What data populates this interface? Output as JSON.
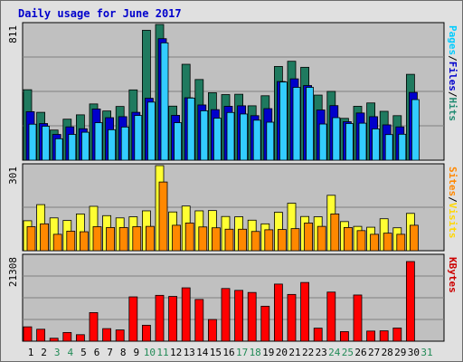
{
  "chart_data": [
    {
      "type": "bar",
      "title": "Daily usage for June 2017",
      "ymax_label": "811",
      "ylabel_parts": [
        {
          "text": "Pages",
          "color": "#00ccff"
        },
        {
          "text": "/",
          "color": "#000000"
        },
        {
          "text": "Files",
          "color": "#0000cc"
        },
        {
          "text": "/",
          "color": "#000000"
        },
        {
          "text": "Hits",
          "color": "#228b73"
        }
      ],
      "ylim": [
        0,
        811
      ],
      "categories": [
        "1",
        "2",
        "3",
        "4",
        "5",
        "6",
        "7",
        "8",
        "9",
        "10",
        "11",
        "12",
        "13",
        "14",
        "15",
        "16",
        "17",
        "18",
        "19",
        "20",
        "21",
        "22",
        "23",
        "24",
        "25",
        "26",
        "27",
        "28",
        "29",
        "30",
        "31"
      ],
      "weekend_days": [
        "3",
        "4",
        "10",
        "11",
        "17",
        "18",
        "24",
        "25",
        "31"
      ],
      "series": [
        {
          "name": "Hits",
          "color": "#1f7a5f",
          "values": [
            421,
            286,
            180,
            245,
            271,
            336,
            294,
            321,
            420,
            776,
            811,
            323,
            573,
            482,
            403,
            392,
            394,
            325,
            385,
            560,
            591,
            555,
            389,
            411,
            250,
            322,
            342,
            292,
            266,
            513,
            0
          ]
        },
        {
          "name": "Files",
          "color": "#0000cc",
          "values": [
            290,
            219,
            154,
            199,
            188,
            306,
            254,
            260,
            286,
            370,
            726,
            268,
            373,
            330,
            302,
            322,
            325,
            266,
            308,
            470,
            486,
            446,
            300,
            326,
            230,
            282,
            260,
            211,
            199,
            405,
            0
          ]
        },
        {
          "name": "Pages",
          "color": "#33ccff",
          "values": [
            215,
            203,
            128,
            154,
            167,
            224,
            182,
            198,
            267,
            347,
            701,
            224,
            371,
            295,
            251,
            285,
            276,
            239,
            227,
            467,
            435,
            435,
            216,
            254,
            219,
            221,
            187,
            153,
            155,
            362,
            0
          ]
        }
      ]
    },
    {
      "type": "bar",
      "ymax_label": "301",
      "ylabel_parts": [
        {
          "text": "Sites",
          "color": "#ff8800"
        },
        {
          "text": "/",
          "color": "#000000"
        },
        {
          "text": "Visits",
          "color": "#ffd700"
        }
      ],
      "ylim": [
        0,
        301
      ],
      "categories": [
        "1",
        "2",
        "3",
        "4",
        "5",
        "6",
        "7",
        "8",
        "9",
        "10",
        "11",
        "12",
        "13",
        "14",
        "15",
        "16",
        "17",
        "18",
        "19",
        "20",
        "21",
        "22",
        "23",
        "24",
        "25",
        "26",
        "27",
        "28",
        "29",
        "30",
        "31"
      ],
      "series": [
        {
          "name": "Visits",
          "color": "#ffff33",
          "values": [
            106,
            163,
            116,
            107,
            130,
            157,
            124,
            116,
            120,
            141,
            301,
            137,
            158,
            141,
            142,
            121,
            120,
            108,
            95,
            136,
            168,
            121,
            120,
            196,
            103,
            86,
            83,
            113,
            81,
            132,
            0
          ]
        },
        {
          "name": "Sites",
          "color": "#ff8800",
          "values": [
            85,
            95,
            58,
            69,
            67,
            85,
            82,
            82,
            85,
            86,
            243,
            90,
            98,
            84,
            81,
            76,
            76,
            68,
            74,
            75,
            78,
            98,
            86,
            130,
            82,
            71,
            58,
            62,
            58,
            90,
            0
          ]
        }
      ]
    },
    {
      "type": "bar",
      "ymax_label": "21308",
      "ylabel_parts": [
        {
          "text": "KBytes",
          "color": "#cc0000"
        }
      ],
      "ylim": [
        0,
        21308
      ],
      "categories": [
        "1",
        "2",
        "3",
        "4",
        "5",
        "6",
        "7",
        "8",
        "9",
        "10",
        "11",
        "12",
        "13",
        "14",
        "15",
        "16",
        "17",
        "18",
        "19",
        "20",
        "21",
        "22",
        "23",
        "24",
        "25",
        "26",
        "27",
        "28",
        "29",
        "30",
        "31"
      ],
      "series": [
        {
          "name": "KBytes",
          "color": "#ff0000",
          "values": [
            3594,
            2990,
            740,
            2177,
            1628,
            7163,
            3147,
            2821,
            11100,
            3996,
            11485,
            11212,
            13365,
            10451,
            5433,
            13193,
            12726,
            12202,
            8759,
            14304,
            11709,
            14705,
            3265,
            12298,
            2399,
            11569,
            2535,
            2599,
            3303,
            19947,
            0
          ]
        }
      ]
    }
  ]
}
